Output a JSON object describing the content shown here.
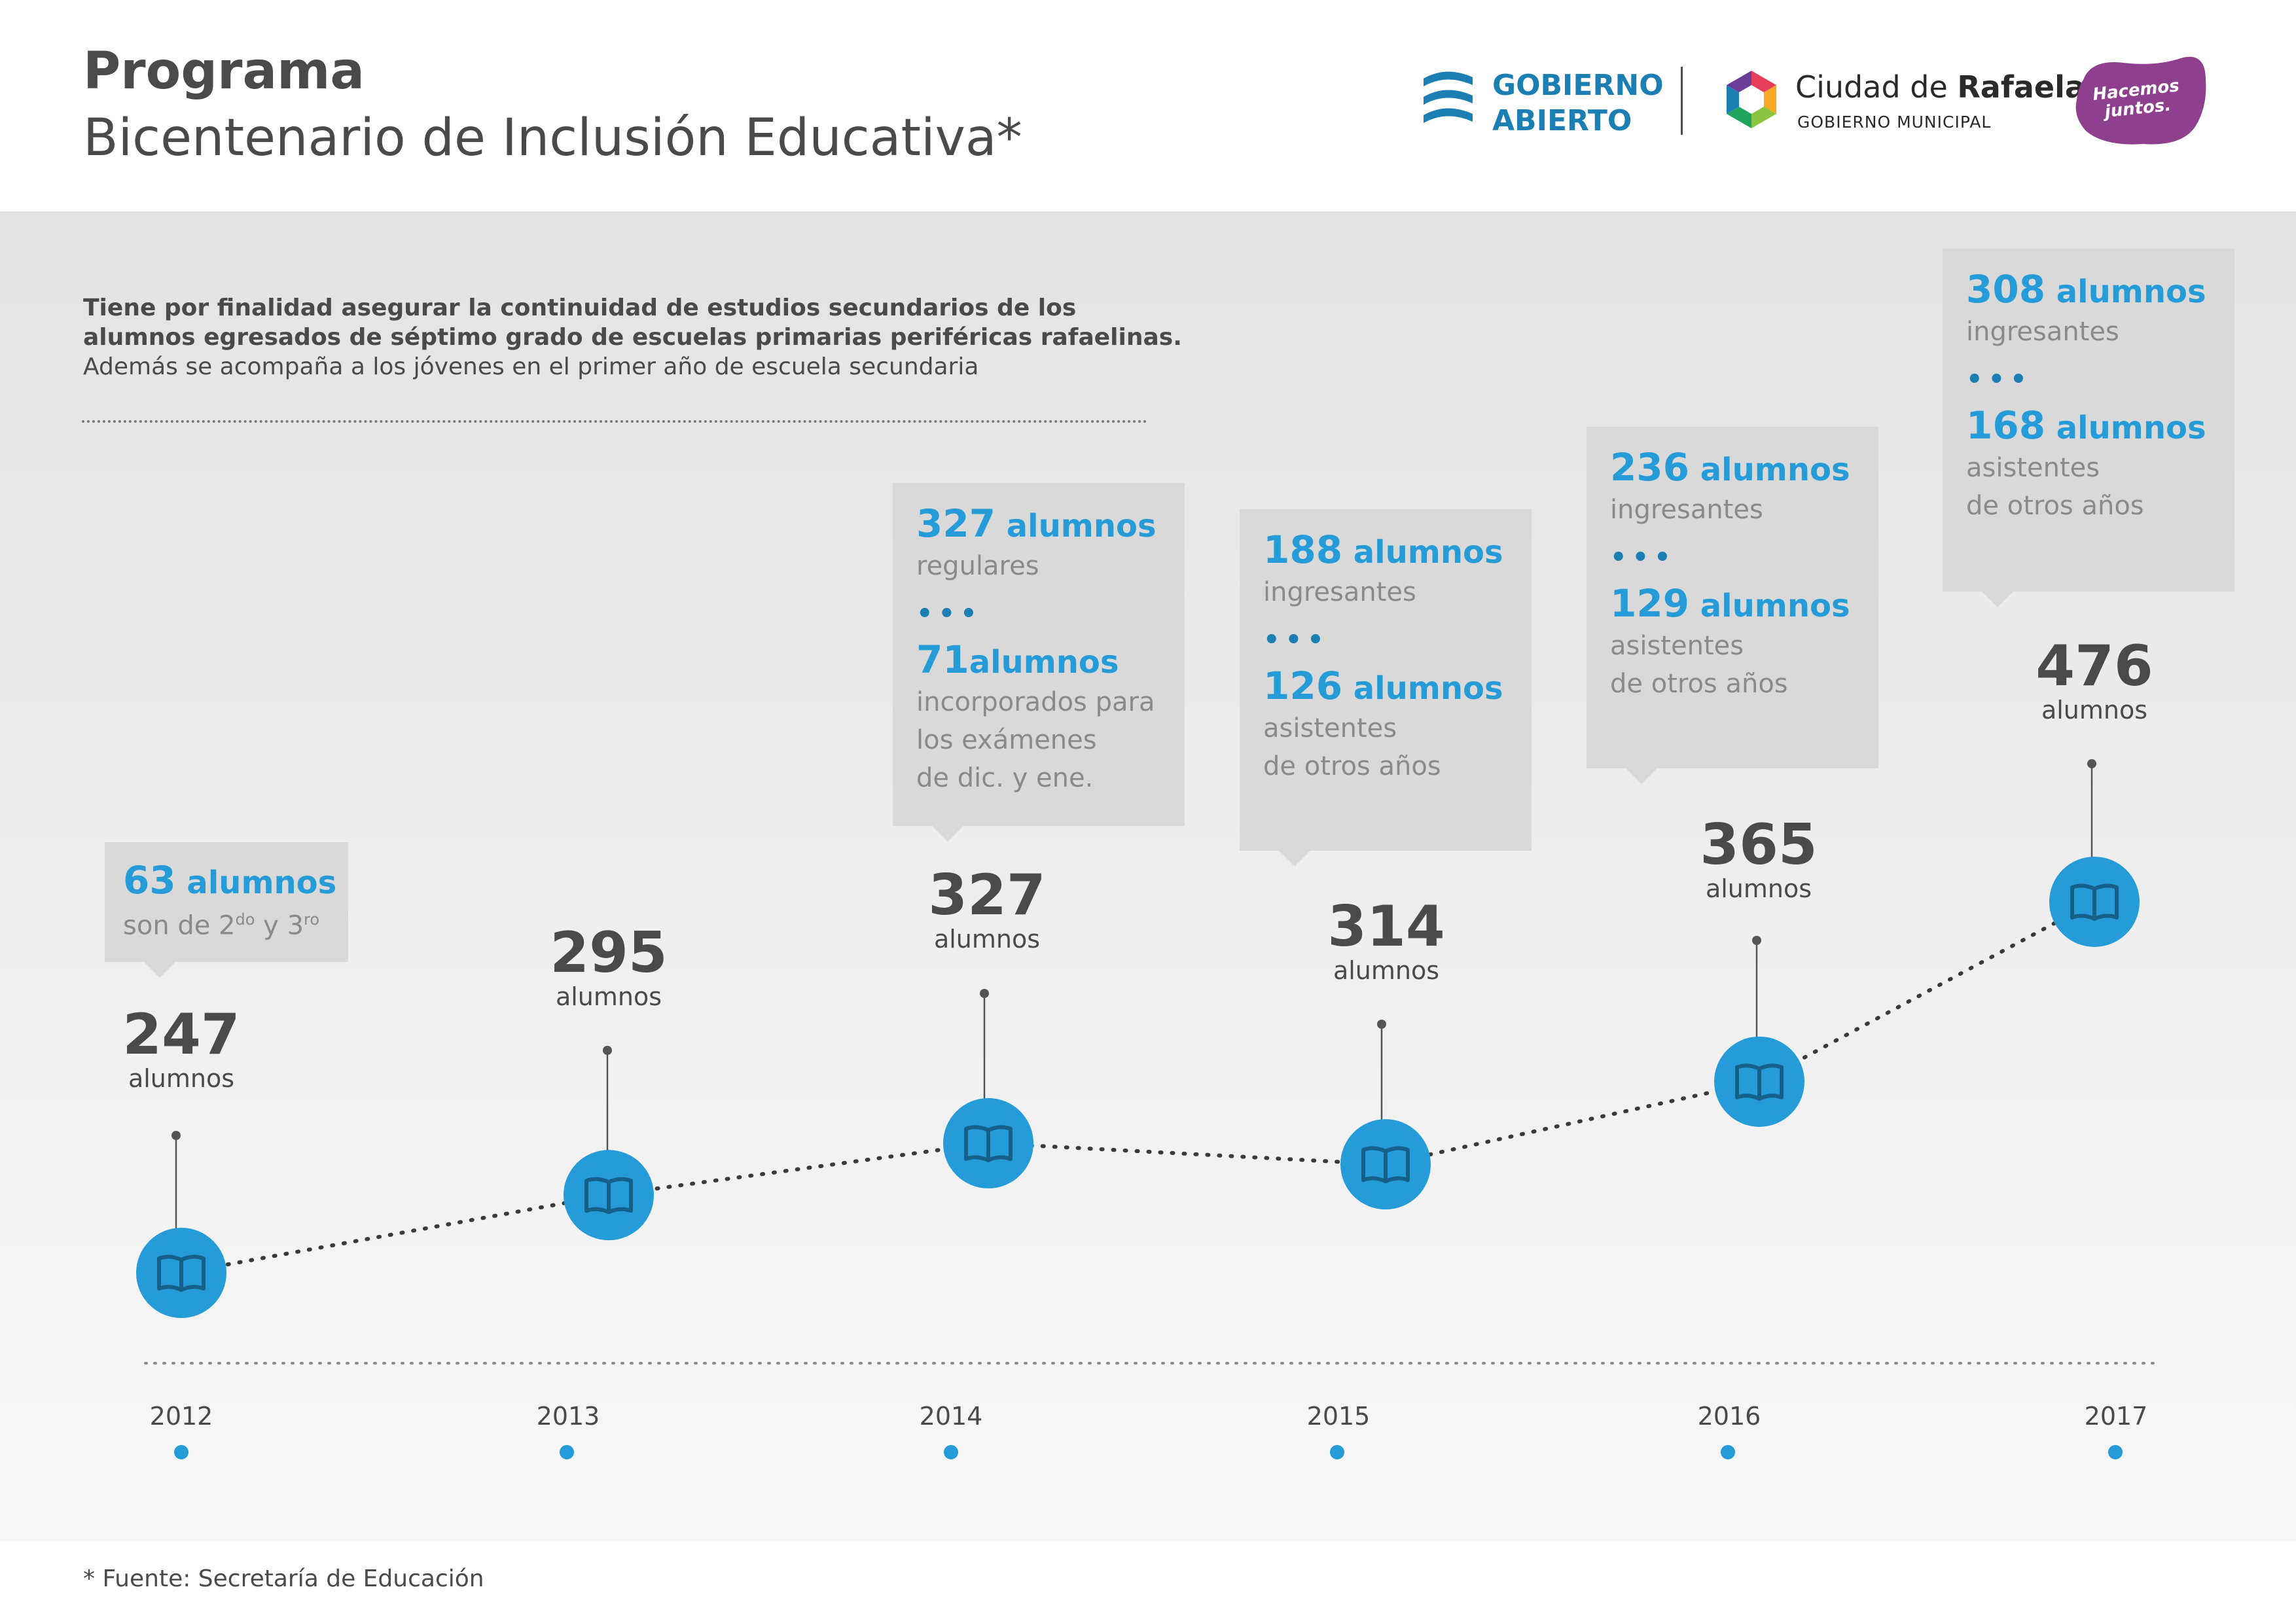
{
  "header": {
    "title_line1": "Programa",
    "title_line2": "Bicentenario de Inclusión Educativa*",
    "logos": {
      "gobierno_abierto_line1": "GOBIERNO",
      "gobierno_abierto_line2": "ABIERTO",
      "ciudad_prefix": "Ciudad de ",
      "ciudad_name": "Rafaela",
      "ciudad_sub": "GOBIERNO MUNICIPAL",
      "hacemos_line1": "Hacemos",
      "hacemos_line2": "juntos."
    }
  },
  "intro": {
    "line1": "Tiene por finalidad asegurar la continuidad de estudios secundarios de los",
    "line2": "alumnos egresados de séptimo grado de escuelas primarias periféricas rafaelinas.",
    "line3": "Además se acompaña a los jóvenes en el primer año de escuela secundaria"
  },
  "chart_data": {
    "type": "line",
    "title": "Programa Bicentenario de Inclusión Educativa*",
    "x": [
      "2012",
      "2013",
      "2014",
      "2015",
      "2016",
      "2017"
    ],
    "series": [
      {
        "values": [
          247,
          295,
          327,
          314,
          365,
          476
        ]
      }
    ],
    "value_unit_label": "alumnos",
    "grid": false,
    "legend": "none"
  },
  "totals": [
    {
      "value": "247",
      "label": "alumnos"
    },
    {
      "value": "295",
      "label": "alumnos"
    },
    {
      "value": "327",
      "label": "alumnos"
    },
    {
      "value": "314",
      "label": "alumnos"
    },
    {
      "value": "365",
      "label": "alumnos"
    },
    {
      "value": "476",
      "label": "alumnos"
    }
  ],
  "details": {
    "y2012": {
      "num": "63",
      "unit": " alumnos",
      "text_pre": "son de 2",
      "sup1": "do",
      "text_mid": " y 3",
      "sup2": "ro"
    },
    "y2014": {
      "n1": "327",
      "u1": " alumnos",
      "t1": "regulares",
      "dots": "•••",
      "n2": "71",
      "u2": "alumnos",
      "t2a": "incorporados para",
      "t2b": "los exámenes",
      "t2c": "de dic. y ene."
    },
    "y2015": {
      "n1": "188",
      "u1": " alumnos",
      "t1": "ingresantes",
      "dots": "•••",
      "n2": "126",
      "u2": " alumnos",
      "t2a": "asistentes",
      "t2b": "de otros años"
    },
    "y2016": {
      "n1": "236",
      "u1": " alumnos",
      "t1": "ingresantes",
      "dots": "•••",
      "n2": "129",
      "u2": " alumnos",
      "t2a": "asistentes",
      "t2b": "de otros años"
    },
    "y2017": {
      "n1": "308",
      "u1": " alumnos",
      "t1": "ingresantes",
      "dots": "•••",
      "n2": "168",
      "u2": " alumnos",
      "t2a": "asistentes",
      "t2b": "de otros años"
    }
  },
  "footnote": "* Fuente: Secretaría de Educación",
  "colors": {
    "accent_blue": "#259bd8",
    "dark_blue": "#1c7fb3",
    "text_dark": "#4a4a4a",
    "box_gray": "#d9d9d9",
    "hacemos_purple": "#8e3f8e"
  },
  "icons": [
    "book-icon",
    "gobierno-abierto-logo",
    "ciudad-rafaela-logo",
    "hacemos-juntos-logo"
  ]
}
